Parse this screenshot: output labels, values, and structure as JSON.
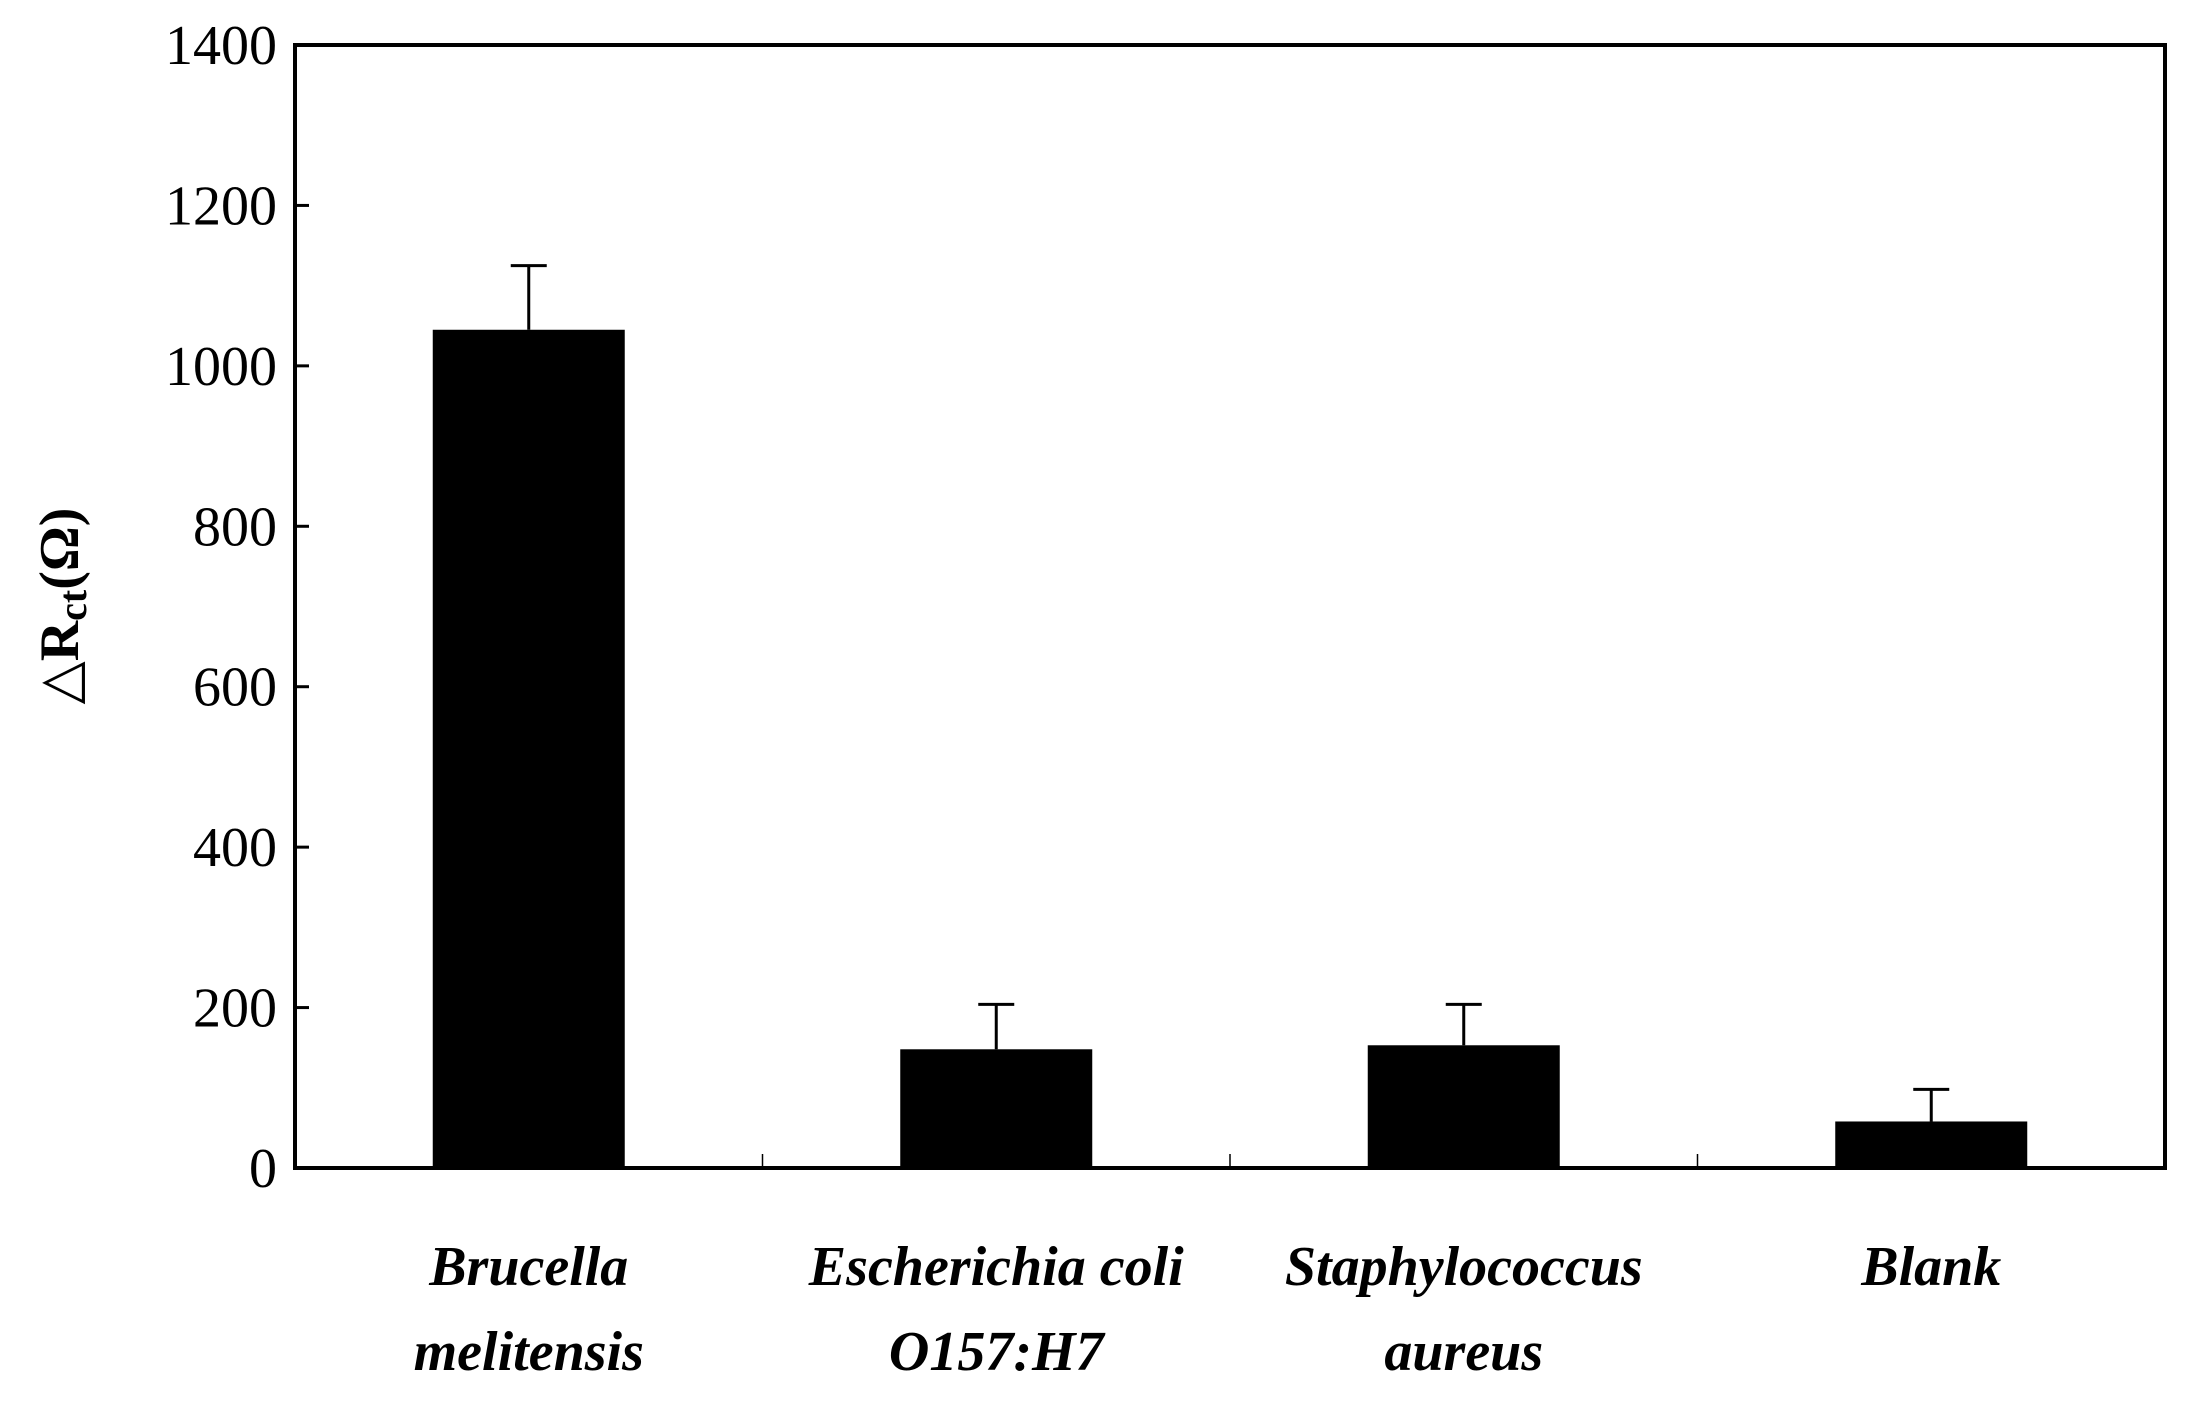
{
  "chart_data": {
    "type": "bar",
    "title": "",
    "ylabel": {
      "prefix": "△",
      "symbol": "R",
      "subscript": "ct",
      "unit": "(Ω)"
    },
    "xlabel": "",
    "ylim": [
      0,
      1400
    ],
    "yticks": [
      0,
      200,
      400,
      600,
      800,
      1000,
      1200,
      1400
    ],
    "grid": false,
    "bar_color": "#000000",
    "categories": [
      {
        "line1": "Brucella",
        "line2": "melitensis"
      },
      {
        "line1": "Escherichia coli",
        "line2": "O157:H7"
      },
      {
        "line1": "Staphylococcus",
        "line2": "aureus"
      },
      {
        "line1": "Blank",
        "line2": ""
      }
    ],
    "values": [
      1045,
      148,
      153,
      58
    ],
    "error_upper": [
      1125,
      204,
      204,
      98
    ]
  }
}
